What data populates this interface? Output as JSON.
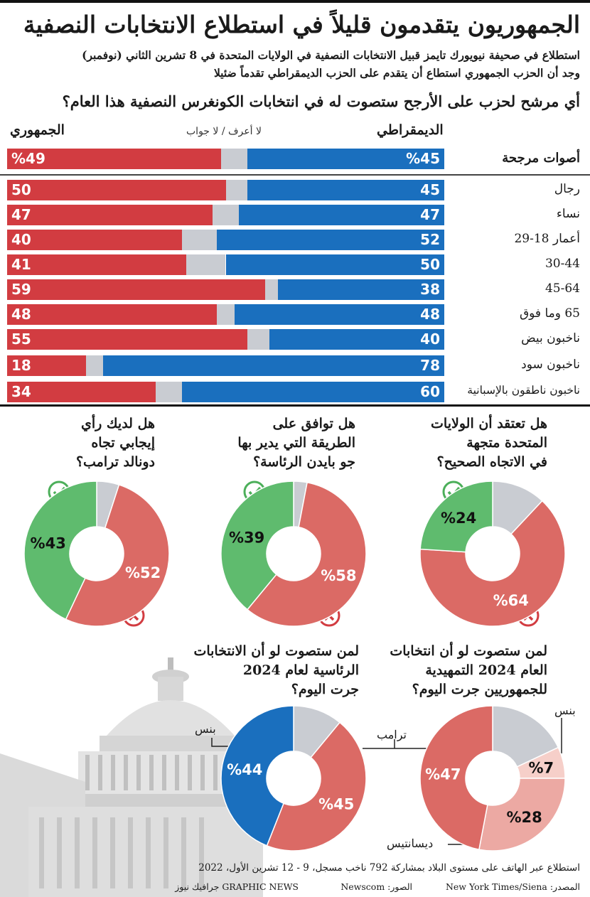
{
  "title": "الجمهوريون يتقدمون قليلاً في استطلاع الانتخابات النصفية",
  "subtitle_line1": "استطلاع في صحيفة نيويورك تايمز قبيل الانتخابات النصفية في الولايات المتحدة في 8 تشرين الثاني (نوفمبر)",
  "subtitle_line2": "وجد أن الحزب الجمهوري استطاع أن يتقدم على الحزب الديمقراطي تقدماً ضئيلا",
  "colors": {
    "republican": "#d23c41",
    "democrat": "#1a6fbe",
    "unsure": "#c9ccd2",
    "yes": "#5fbb6e",
    "no": "#db6a65",
    "light_red": "#eca9a3",
    "pale_red": "#f6cfc9"
  },
  "chart_data": [
    {
      "type": "bar",
      "title": "أي مرشح لحزب على الأرجح ستصوت له في انتخابات الكونغرس النصفية هذا العام؟",
      "header_democrat": "الديمقراطي",
      "header_unsure": "لا أعرف / لا جواب",
      "header_republican": "الجمهوري",
      "rows": [
        {
          "label": "أصوات مرجحة",
          "dem": 45,
          "rep": 49,
          "dem_text": "%45",
          "rep_text": "%49"
        },
        {
          "label": "رجال",
          "dem": 45,
          "rep": 50,
          "dem_text": "45",
          "rep_text": "50"
        },
        {
          "label": "نساء",
          "dem": 47,
          "rep": 47,
          "dem_text": "47",
          "rep_text": "47"
        },
        {
          "label": "أعمار 18-29",
          "dem": 52,
          "rep": 40,
          "dem_text": "52",
          "rep_text": "40"
        },
        {
          "label": "30-44",
          "dem": 50,
          "rep": 41,
          "dem_text": "50",
          "rep_text": "41"
        },
        {
          "label": "45-64",
          "dem": 38,
          "rep": 59,
          "dem_text": "38",
          "rep_text": "59"
        },
        {
          "label": "65 وما فوق",
          "dem": 48,
          "rep": 48,
          "dem_text": "48",
          "rep_text": "48"
        },
        {
          "label": "ناخبون بيض",
          "dem": 40,
          "rep": 55,
          "dem_text": "40",
          "rep_text": "55"
        },
        {
          "label": "ناخبون سود",
          "dem": 78,
          "rep": 18,
          "dem_text": "78",
          "rep_text": "18"
        },
        {
          "label": "ناخبون ناطقون بالإسبانية",
          "dem": 60,
          "rep": 34,
          "dem_text": "60",
          "rep_text": "34"
        }
      ]
    },
    {
      "type": "pie",
      "title": "هل تعتقد أن الولايات المتحدة متجهة في الاتجاه الصحيح؟",
      "slices": [
        {
          "value": 24,
          "label": "%24",
          "role": "yes"
        },
        {
          "value": 64,
          "label": "%64",
          "role": "no"
        },
        {
          "value": 12,
          "label": "",
          "role": "unsure"
        }
      ]
    },
    {
      "type": "pie",
      "title": "هل توافق على الطريقة التي يدير بها جو بايدن الرئاسة؟",
      "slices": [
        {
          "value": 39,
          "label": "%39",
          "role": "yes"
        },
        {
          "value": 58,
          "label": "%58",
          "role": "no"
        },
        {
          "value": 3,
          "label": "",
          "role": "unsure"
        }
      ]
    },
    {
      "type": "pie",
      "title": "هل لديك رأي إيجابي تجاه دونالد ترامب؟",
      "slices": [
        {
          "value": 43,
          "label": "%43",
          "role": "yes"
        },
        {
          "value": 52,
          "label": "%52",
          "role": "no"
        },
        {
          "value": 5,
          "label": "",
          "role": "unsure"
        }
      ]
    },
    {
      "type": "pie",
      "title": "لمن ستصوت لو أن انتخابات العام 2024 التمهيدية للجمهوريين جرت اليوم؟",
      "slices": [
        {
          "value": 7,
          "label": "%7",
          "name": "بنس"
        },
        {
          "value": 28,
          "label": "%28",
          "name": "ديسانتيس"
        },
        {
          "value": 47,
          "label": "%47",
          "name": "ترامب"
        },
        {
          "value": 18,
          "label": ""
        }
      ]
    },
    {
      "type": "pie",
      "title": "لمن ستصوت لو أن الانتخابات الرئاسية لعام 2024 جرت اليوم؟",
      "slices": [
        {
          "value": 45,
          "label": "%45",
          "name": "ترامب"
        },
        {
          "value": 44,
          "label": "%44",
          "name": "بنس"
        },
        {
          "value": 11,
          "label": ""
        }
      ]
    }
  ],
  "q1_lines": [
    "هل تعتقد أن الولايات",
    "المتحدة متجهة",
    "في الاتجاه الصحيح؟"
  ],
  "q2_lines": [
    "هل توافق على",
    "الطريقة التي يدير بها",
    "جو بايدن الرئاسة؟"
  ],
  "q3_lines": [
    "هل لديك رأي",
    "إيجابي تجاه",
    "دونالد ترامب؟"
  ],
  "q4_lines": [
    "لمن ستصوت لو أن انتخابات",
    "العام 2024 التمهيدية",
    "للجمهوريين جرت اليوم؟"
  ],
  "q5_lines": [
    "لمن ستصوت لو أن الانتخابات",
    "الرئاسية لعام 2024",
    "جرت اليوم؟"
  ],
  "label_pence": "بنس",
  "label_trump": "ترامب",
  "label_desantis": "ديسانتيس",
  "footer_method": "استطلاع عبر الهاتف على مستوى البلاد بمشاركة 792 ناخب مسجل، 9 - 12 تشرين الأول، 2022",
  "footer_source": "المصدر: New York Times/Siena",
  "footer_photo": "الصور: Newscom",
  "footer_brand": "GRAPHIC NEWS جرافيك نيوز"
}
